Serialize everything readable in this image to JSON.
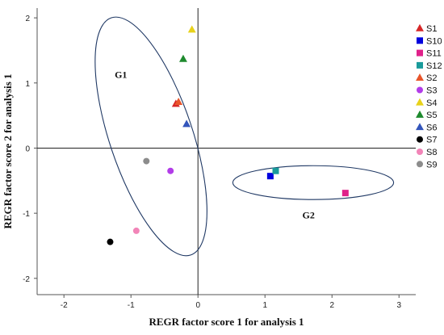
{
  "chart_data": {
    "type": "scatter",
    "xlabel": "REGR factor score   1 for analysis 1",
    "ylabel": "REGR factor score   2 for analysis 1",
    "xlim": [
      -2.4,
      3.25
    ],
    "ylim": [
      -2.25,
      2.15
    ],
    "x_ticks": [
      -2,
      -1,
      0,
      1,
      2,
      3
    ],
    "y_ticks": [
      -2,
      -1,
      0,
      1,
      2
    ],
    "reference_lines": {
      "x": 0,
      "y": 0
    },
    "grid": false,
    "legend_position": "right",
    "series": [
      {
        "name": "S1",
        "marker": "triangle",
        "color": "#d62728",
        "x": -0.33,
        "y": 0.68
      },
      {
        "name": "S10",
        "marker": "square",
        "color": "#0000dd",
        "x": 1.08,
        "y": -0.43
      },
      {
        "name": "S11",
        "marker": "square",
        "color": "#e0218a",
        "x": 2.2,
        "y": -0.69
      },
      {
        "name": "S12",
        "marker": "square",
        "color": "#1a9b9b",
        "x": 1.16,
        "y": -0.35
      },
      {
        "name": "S2",
        "marker": "triangle",
        "color": "#e8552b",
        "x": -0.29,
        "y": 0.71
      },
      {
        "name": "S3",
        "marker": "circle",
        "color": "#b23ce8",
        "x": -0.41,
        "y": -0.35
      },
      {
        "name": "S4",
        "marker": "triangle",
        "color": "#e8d21a",
        "x": -0.09,
        "y": 1.82
      },
      {
        "name": "S5",
        "marker": "triangle",
        "color": "#1e8a2e",
        "x": -0.22,
        "y": 1.37
      },
      {
        "name": "S6",
        "marker": "triangle",
        "color": "#3355bb",
        "x": -0.17,
        "y": 0.37
      },
      {
        "name": "S7",
        "marker": "circle",
        "color": "#000000",
        "x": -1.31,
        "y": -1.44
      },
      {
        "name": "S8",
        "marker": "circle",
        "color": "#f285b8",
        "x": -0.92,
        "y": -1.27
      },
      {
        "name": "S9",
        "marker": "circle",
        "color": "#8c8c8c",
        "x": -0.77,
        "y": -0.2
      }
    ],
    "groups": [
      {
        "label": "G1",
        "center": [
          -0.7,
          0.18
        ],
        "rx": 0.62,
        "ry": 1.92,
        "rotation_deg": -18.5,
        "label_at": [
          -1.15,
          1.08
        ]
      },
      {
        "label": "G2",
        "center": [
          1.72,
          -0.53
        ],
        "rx": 1.2,
        "ry": 0.26,
        "rotation_deg": 0,
        "label_at": [
          1.65,
          -1.08
        ]
      }
    ]
  }
}
